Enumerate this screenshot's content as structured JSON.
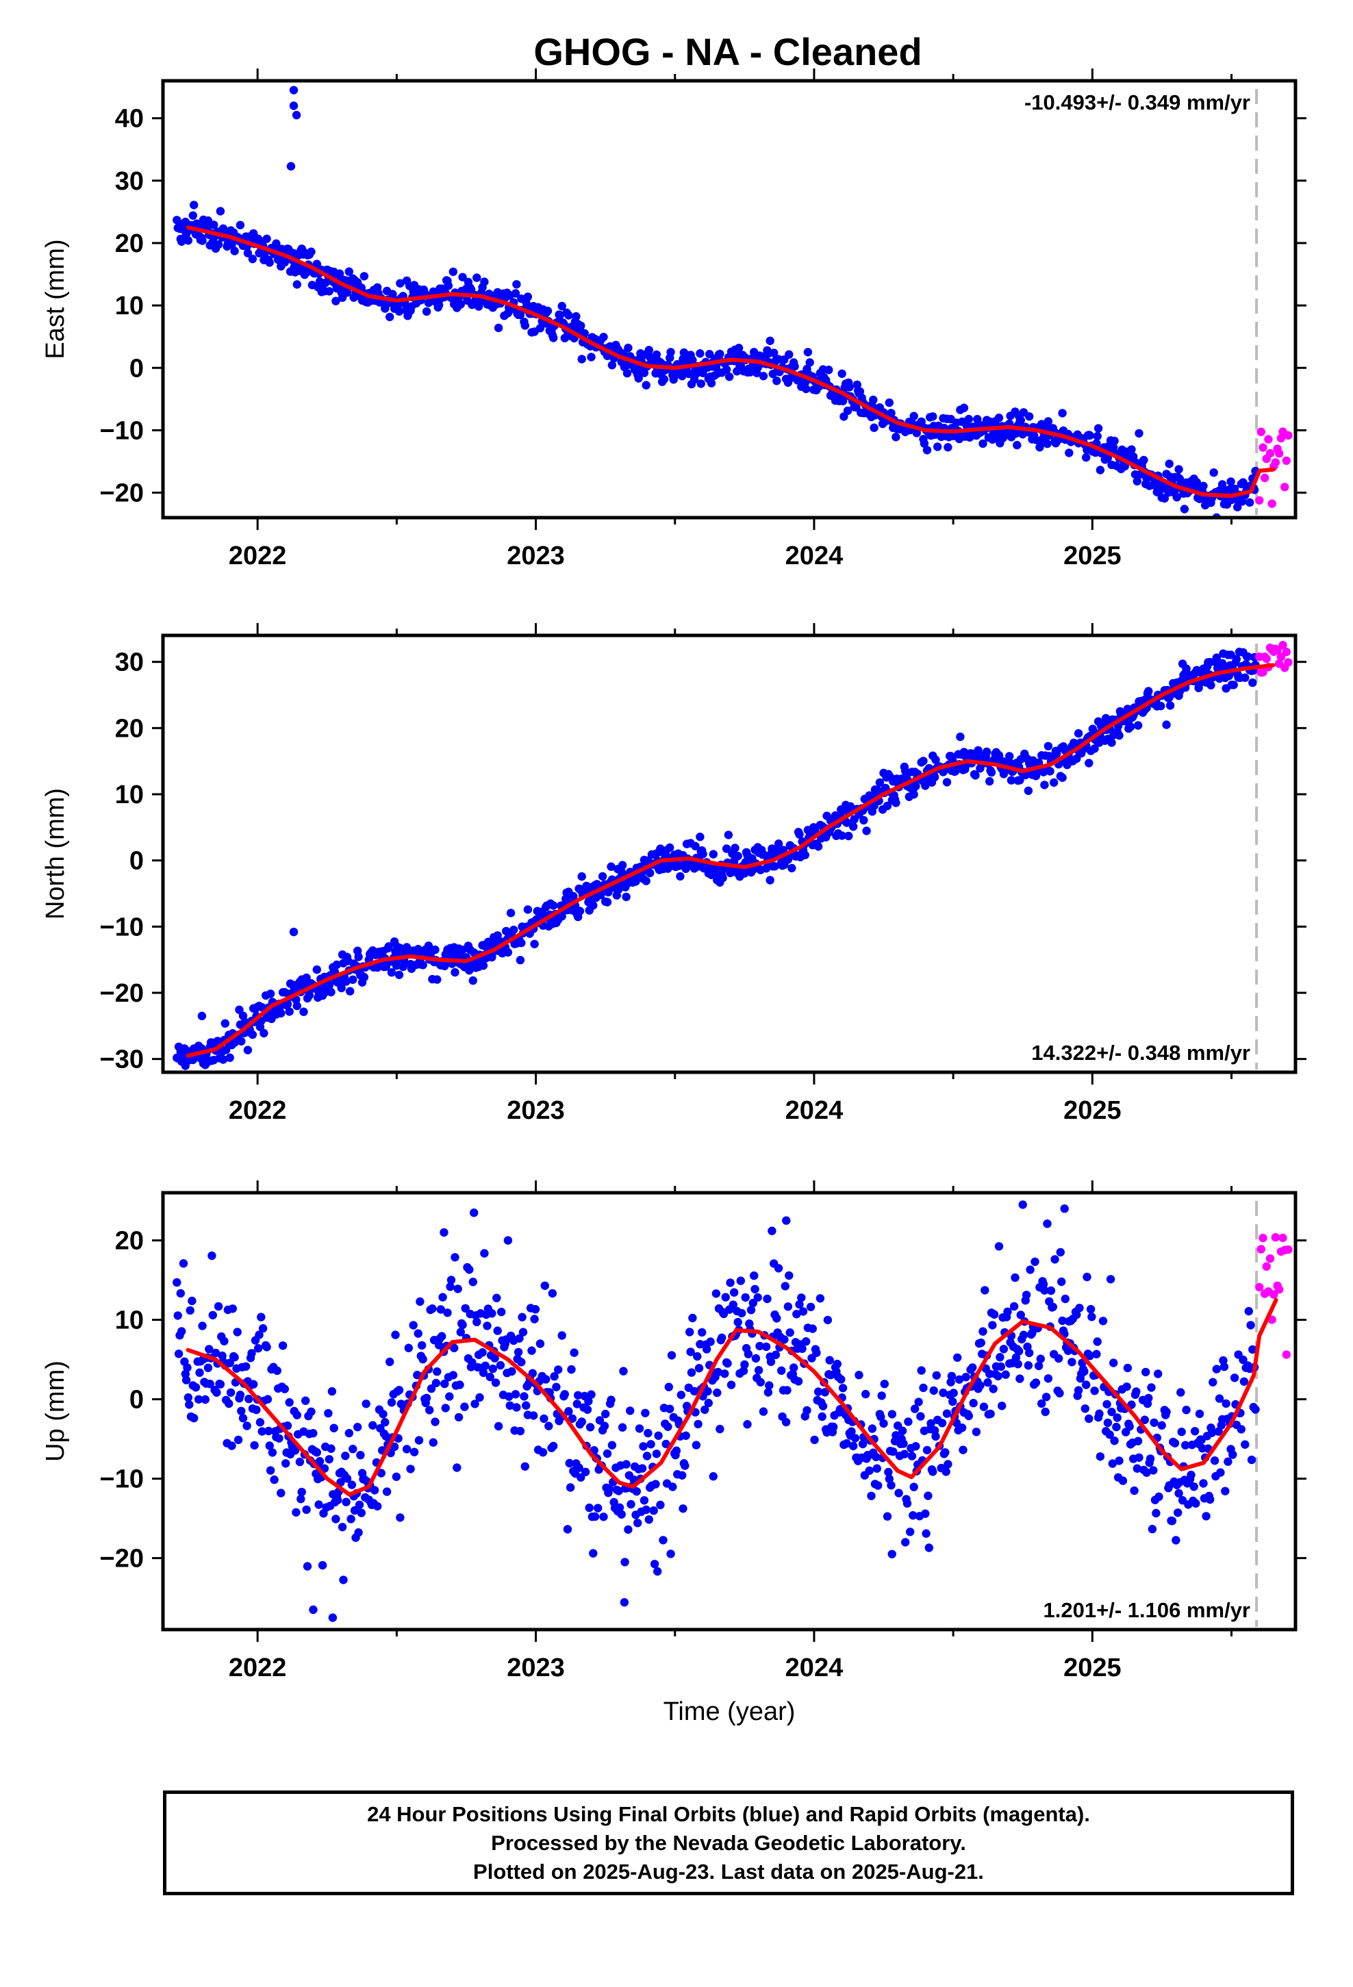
{
  "title": "GHOG  - NA - Cleaned",
  "footer": {
    "line1": "24 Hour Positions Using Final Orbits (blue) and Rapid Orbits (magenta).",
    "line2": "Processed by the Nevada Geodetic Laboratory.",
    "line3": "Plotted on 2025-Aug-23. Last data on 2025-Aug-21."
  },
  "colors": {
    "final": "#0000ff",
    "rapid": "#ff00ff",
    "model": "#ff0000",
    "marker": "#bbbbbb"
  },
  "chart_data": [
    {
      "type": "scatter",
      "name": "east",
      "ylabel": "East (mm)",
      "rate": "-10.493+/- 0.349 mm/yr",
      "rate_position": "top-right",
      "xlim": [
        2021.66,
        2025.73
      ],
      "ylim": [
        -24,
        46
      ],
      "yticks": [
        -20,
        -10,
        0,
        10,
        20,
        30,
        40
      ],
      "xticks": [
        2022,
        2023,
        2024,
        2025
      ],
      "rapid_start": 2025.59,
      "model": [
        [
          2021.75,
          22.5
        ],
        [
          2021.9,
          21
        ],
        [
          2022.0,
          19.5
        ],
        [
          2022.1,
          18
        ],
        [
          2022.2,
          16
        ],
        [
          2022.3,
          13.5
        ],
        [
          2022.4,
          11.5
        ],
        [
          2022.5,
          10.8
        ],
        [
          2022.6,
          11.3
        ],
        [
          2022.7,
          11.8
        ],
        [
          2022.8,
          11.5
        ],
        [
          2022.9,
          10.3
        ],
        [
          2023.0,
          8.5
        ],
        [
          2023.1,
          6.5
        ],
        [
          2023.2,
          4
        ],
        [
          2023.3,
          1.8
        ],
        [
          2023.4,
          0.3
        ],
        [
          2023.5,
          0
        ],
        [
          2023.6,
          0.6
        ],
        [
          2023.7,
          1.3
        ],
        [
          2023.8,
          1
        ],
        [
          2023.9,
          -0.3
        ],
        [
          2024.0,
          -2
        ],
        [
          2024.1,
          -4
        ],
        [
          2024.2,
          -6.5
        ],
        [
          2024.3,
          -8.8
        ],
        [
          2024.4,
          -10
        ],
        [
          2024.5,
          -10.2
        ],
        [
          2024.6,
          -9.8
        ],
        [
          2024.7,
          -9.5
        ],
        [
          2024.8,
          -10
        ],
        [
          2024.9,
          -11
        ],
        [
          2025.0,
          -12.5
        ],
        [
          2025.1,
          -14.5
        ],
        [
          2025.2,
          -16.8
        ],
        [
          2025.3,
          -19
        ],
        [
          2025.4,
          -20.3
        ],
        [
          2025.5,
          -20.5
        ],
        [
          2025.57,
          -19.8
        ],
        [
          2025.6,
          -16.5
        ],
        [
          2025.65,
          -16.3
        ]
      ],
      "outliers": [
        [
          2022.13,
          44.5
        ],
        [
          2022.13,
          42
        ],
        [
          2022.14,
          40.5
        ],
        [
          2022.12,
          32.3
        ]
      ],
      "scatter": 1.3,
      "rapid_range": [
        -22,
        -9
      ]
    },
    {
      "type": "scatter",
      "name": "north",
      "ylabel": "North (mm)",
      "rate": "14.322+/- 0.348 mm/yr",
      "rate_position": "bottom-right",
      "xlim": [
        2021.66,
        2025.73
      ],
      "ylim": [
        -32,
        34
      ],
      "yticks": [
        -30,
        -20,
        -10,
        0,
        10,
        20,
        30
      ],
      "xticks": [
        2022,
        2023,
        2024,
        2025
      ],
      "rapid_start": 2025.59,
      "model": [
        [
          2021.75,
          -29.5
        ],
        [
          2021.85,
          -28.5
        ],
        [
          2021.95,
          -25.5
        ],
        [
          2022.05,
          -22
        ],
        [
          2022.15,
          -20
        ],
        [
          2022.25,
          -18
        ],
        [
          2022.35,
          -16.3
        ],
        [
          2022.45,
          -15
        ],
        [
          2022.55,
          -14.5
        ],
        [
          2022.65,
          -15
        ],
        [
          2022.75,
          -15.2
        ],
        [
          2022.85,
          -13.5
        ],
        [
          2022.95,
          -11
        ],
        [
          2023.05,
          -8.5
        ],
        [
          2023.15,
          -6
        ],
        [
          2023.25,
          -4
        ],
        [
          2023.35,
          -2
        ],
        [
          2023.45,
          0
        ],
        [
          2023.55,
          0.3
        ],
        [
          2023.65,
          -0.5
        ],
        [
          2023.75,
          -1
        ],
        [
          2023.85,
          0
        ],
        [
          2023.95,
          2
        ],
        [
          2024.05,
          5
        ],
        [
          2024.15,
          7.5
        ],
        [
          2024.25,
          10
        ],
        [
          2024.35,
          12
        ],
        [
          2024.45,
          14
        ],
        [
          2024.55,
          15
        ],
        [
          2024.65,
          14.5
        ],
        [
          2024.75,
          13.5
        ],
        [
          2024.85,
          14.5
        ],
        [
          2024.95,
          17
        ],
        [
          2025.05,
          20
        ],
        [
          2025.15,
          22.5
        ],
        [
          2025.25,
          25
        ],
        [
          2025.35,
          27
        ],
        [
          2025.45,
          28.3
        ],
        [
          2025.55,
          29
        ],
        [
          2025.65,
          29.5
        ]
      ],
      "outliers": [
        [
          2022.13,
          -10.8
        ],
        [
          2021.8,
          -23.5
        ]
      ],
      "scatter": 1.2,
      "rapid_range": [
        28,
        33
      ]
    },
    {
      "type": "scatter",
      "name": "up",
      "xlabel": "Time (year)",
      "ylabel": "Up (mm)",
      "rate": "1.201+/- 1.106 mm/yr",
      "rate_position": "bottom-right",
      "xlim": [
        2021.66,
        2025.73
      ],
      "ylim": [
        -29,
        26
      ],
      "yticks": [
        -20,
        -10,
        0,
        10,
        20
      ],
      "xticks": [
        2022,
        2023,
        2024,
        2025
      ],
      "rapid_start": 2025.59,
      "model": [
        [
          2021.75,
          6.2
        ],
        [
          2021.85,
          5
        ],
        [
          2021.95,
          2
        ],
        [
          2022.05,
          -2
        ],
        [
          2022.15,
          -6
        ],
        [
          2022.25,
          -10
        ],
        [
          2022.33,
          -12
        ],
        [
          2022.4,
          -11
        ],
        [
          2022.5,
          -4
        ],
        [
          2022.6,
          3.5
        ],
        [
          2022.7,
          7.2
        ],
        [
          2022.78,
          7.5
        ],
        [
          2022.9,
          5
        ],
        [
          2023.0,
          2
        ],
        [
          2023.1,
          -2
        ],
        [
          2023.2,
          -7
        ],
        [
          2023.3,
          -10.5
        ],
        [
          2023.35,
          -11
        ],
        [
          2023.45,
          -8
        ],
        [
          2023.55,
          -2
        ],
        [
          2023.65,
          5
        ],
        [
          2023.72,
          8.7
        ],
        [
          2023.8,
          8.5
        ],
        [
          2023.9,
          6.5
        ],
        [
          2024.0,
          3.5
        ],
        [
          2024.1,
          -0.5
        ],
        [
          2024.2,
          -5
        ],
        [
          2024.3,
          -9
        ],
        [
          2024.35,
          -9.8
        ],
        [
          2024.45,
          -6
        ],
        [
          2024.55,
          1
        ],
        [
          2024.65,
          7
        ],
        [
          2024.75,
          9.8
        ],
        [
          2024.85,
          9
        ],
        [
          2024.95,
          6
        ],
        [
          2025.05,
          2
        ],
        [
          2025.15,
          -2
        ],
        [
          2025.25,
          -6.5
        ],
        [
          2025.32,
          -8.8
        ],
        [
          2025.4,
          -8
        ],
        [
          2025.5,
          -3
        ],
        [
          2025.58,
          3
        ],
        [
          2025.6,
          8
        ],
        [
          2025.66,
          12.5
        ]
      ],
      "outliers": [
        [
          2022.2,
          -26.5
        ],
        [
          2022.27,
          -27.5
        ],
        [
          2022.67,
          21
        ],
        [
          2022.9,
          20
        ],
        [
          2023.32,
          -20.5
        ],
        [
          2023.9,
          22.5
        ],
        [
          2024.28,
          -19.5
        ],
        [
          2024.75,
          24.5
        ],
        [
          2024.9,
          24
        ]
      ],
      "scatter": 5.0,
      "rapid_range": [
        5,
        21
      ]
    }
  ]
}
